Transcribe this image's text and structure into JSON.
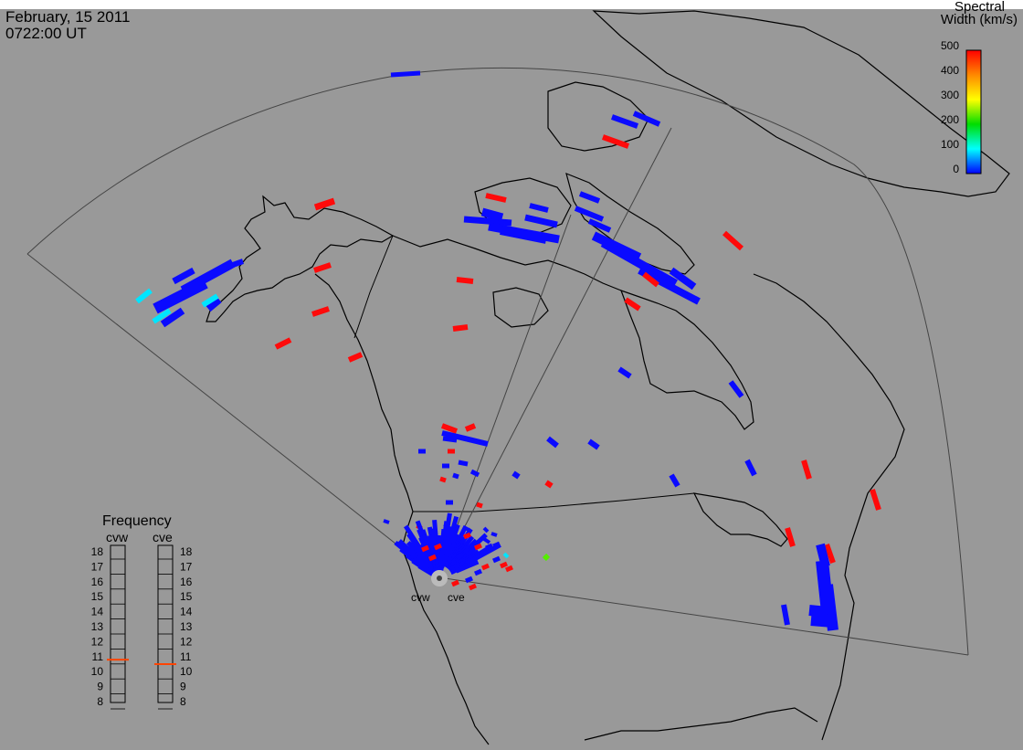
{
  "header": {
    "date": "February, 15 2011",
    "time": "0722:00 UT"
  },
  "colorbar": {
    "title_line1": "Spectral",
    "title_line2": "Width (km/s)",
    "ticks": [
      "500",
      "400",
      "300",
      "200",
      "100",
      "0"
    ],
    "range": [
      0,
      500
    ],
    "colors": [
      "#ff0000",
      "#ff8800",
      "#ffff00",
      "#00dd00",
      "#00ffff",
      "#0000ff"
    ]
  },
  "radars": {
    "west": "cvw",
    "east": "cve"
  },
  "frequency": {
    "title": "Frequency",
    "labels": [
      "18",
      "17",
      "16",
      "15",
      "14",
      "13",
      "12",
      "11",
      "10",
      "9",
      "8"
    ],
    "cvw_value": 10.8,
    "cve_value": 10.5,
    "marker_color": "#ff4400"
  },
  "colors": {
    "background": "#999999",
    "coast": "#000000",
    "fov": "#444444"
  }
}
